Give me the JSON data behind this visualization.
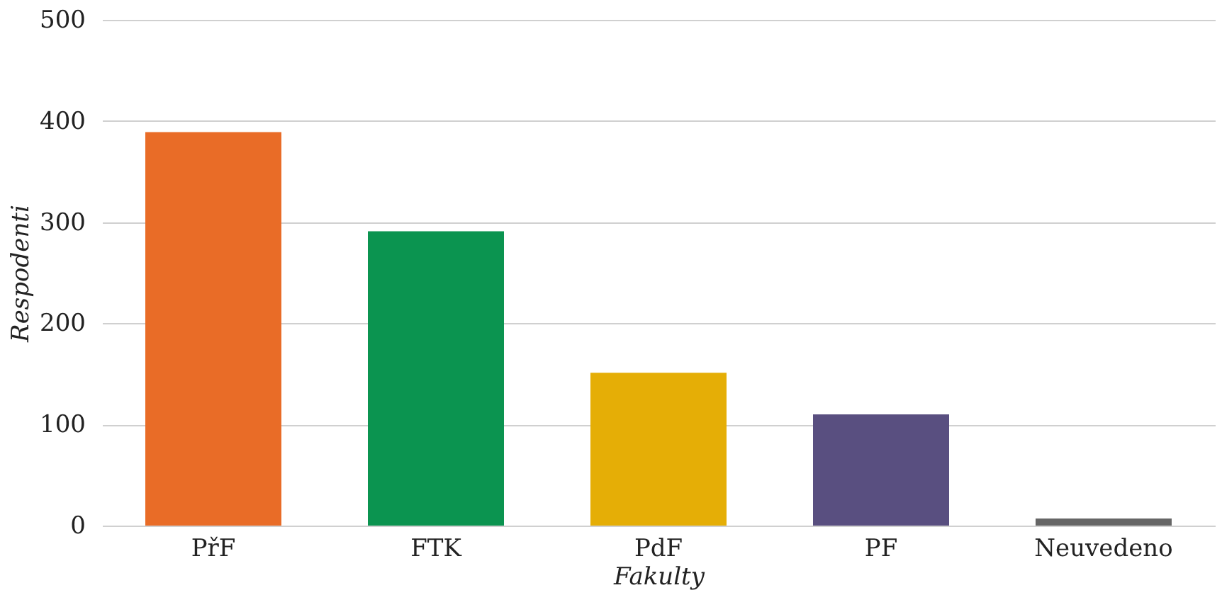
{
  "chart_data": {
    "type": "bar",
    "xlabel": "Fakulty",
    "ylabel": "Respodenti",
    "categories": [
      "PřF",
      "FTK",
      "PdF",
      "PF",
      "Neuvedeno"
    ],
    "values": [
      389,
      291,
      151,
      110,
      7
    ],
    "colors": [
      "#e96c27",
      "#0b9450",
      "#e5ae06",
      "#594f80",
      "#666666"
    ],
    "ylim": [
      0,
      500
    ],
    "yticks": [
      0,
      100,
      200,
      300,
      400,
      500
    ],
    "grid": "y"
  }
}
